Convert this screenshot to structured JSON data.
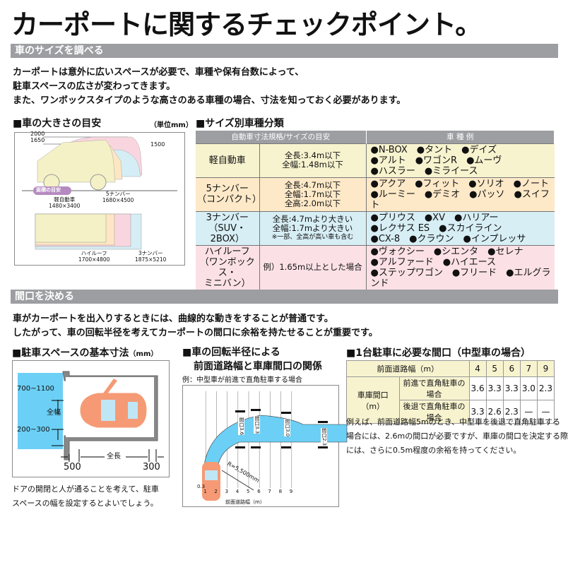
{
  "title": "カーポートに関するチェックポイント。",
  "section1": {
    "bar": "車のサイズを調べる",
    "lines": [
      "カーポートは意外に広いスペースが必要で、車種や保有台数によって、",
      "駐車スペースの広さが変わってきます。",
      "また、ワンボックスタイプのような高さのある車種の場合、寸法を知っておく必要があります。"
    ]
  },
  "car_size": {
    "heading": "■車の大きさの目安",
    "unit": "（単位mm）",
    "heights": [
      "2000",
      "1650",
      "1500"
    ],
    "area_badge": "面積の目安",
    "labels": {
      "kei_name": "軽自動車",
      "kei_dim": "1480×3400",
      "five_name": "5ナンバー",
      "five_dim": "1680×4500",
      "high_name": "ハイルーフ",
      "high_dim": "1700×4800",
      "three_name": "3ナンバー",
      "three_dim": "1875×5210"
    },
    "colors": {
      "kei": "#f4f1c6",
      "five": "#fde6c2",
      "high": "#f9d6df",
      "three": "#d5eef6"
    }
  },
  "size_table": {
    "heading": "■サイズ別車種分類",
    "headers": [
      "自動車寸法規格/サイズの目安",
      "車 種 例"
    ],
    "rows": [
      {
        "name": [
          "軽自動車"
        ],
        "spec": [
          "全長:3.4m以下",
          "全幅:1.48m以下"
        ],
        "examples": [
          "●N-BOX　●タント　●デイズ",
          "●アルト　●ワゴンR　●ムーヴ",
          "●ハスラー　●ミライース"
        ],
        "color": "#f7f3cf"
      },
      {
        "name": [
          "5ナンバー",
          "（コンパクト）"
        ],
        "spec": [
          "全長:4.7m以下",
          "全幅:1.7m以下",
          "全高:2.0m以下"
        ],
        "examples": [
          "●アクア　●フィット　●ソリオ　●ノート",
          "●ルーミー　●デミオ　●パッソ　●スイフト"
        ],
        "color": "#fde9c8"
      },
      {
        "name": [
          "3ナンバー",
          "（SUV・2BOX）"
        ],
        "spec": [
          "全長:4.7mより大きい",
          "全幅:1.7mより大きい",
          "※一部、全高が高い車も含む"
        ],
        "examples": [
          "●プリウス　●XV　●ハリアー",
          "●レクサス ES　●スカイライン",
          "●CX-8　●クラウン　●インプレッサ"
        ],
        "color": "#d7eef5"
      },
      {
        "name": [
          "ハイルーフ",
          "（ワンボックス・",
          "ミニバン）"
        ],
        "spec": [
          "例）1.65m以上とした場合"
        ],
        "examples": [
          "●ヴォクシー　●シエンタ　●セレナ",
          "●アルファード　●ハイエース",
          "●ステップワゴン　●フリード　●エルグランド"
        ],
        "color": "#fbe1e6"
      }
    ]
  },
  "section2": {
    "bar": "間口を決める",
    "lines": [
      "車がカーポートを出入りするときには、曲線的な動きをすることが普通です。",
      "したがって、車の回転半径を考えてカーポートの間口に余裕を持たせることが重要です。"
    ]
  },
  "parking": {
    "heading": "■駐車スペースの基本寸法",
    "unit": "（mm）",
    "dims": {
      "side1": "700~1100",
      "width": "全幅",
      "side2": "200~300",
      "front": "500",
      "length": "全長",
      "rear": "300"
    },
    "note": [
      "ドアの開閉と人が通ることを考えて、駐車",
      "スペースの幅を設定するとよいでしょう。"
    ],
    "colors": {
      "door_zone": "#6ccff5",
      "car": "#f59a74"
    }
  },
  "turning": {
    "heading": [
      "■車の回転半径による",
      "前面道路幅と車庫間口の関係"
    ],
    "sub": "例：中型車が前進で直角駐車する場合",
    "radius": "R=5,500mm",
    "offset": "0.3",
    "ticks": [
      "1",
      "2",
      "3",
      "4",
      "5",
      "6",
      "7",
      "8",
      "9"
    ],
    "axis_label": "前面道路幅（m）",
    "openings": [
      "間口3.6",
      "間口3.3",
      "間口3.0",
      "間口2.3"
    ]
  },
  "opening_table": {
    "heading": "■1台駐車に必要な間口（中型車の場合）",
    "road_label": "前面道路幅（m）",
    "road_widths": [
      "4",
      "5",
      "6",
      "7",
      "9"
    ],
    "row_group": "車庫間口（m）",
    "rows": [
      {
        "label": "前進で直角駐車の場合",
        "values": [
          "3.6",
          "3.3",
          "3.3",
          "3.0",
          "2.3"
        ]
      },
      {
        "label": "後退で直角駐車の場合",
        "values": [
          "3.3",
          "2.6",
          "2.3",
          "—",
          "—"
        ]
      }
    ],
    "note": [
      "例えば、前面道路幅5mのとき、中型車を後退で直角駐車する",
      "場合には、2.6mの間口が必要ですが、車庫の間口を決定する際",
      "には、さらに0.5m程度の余裕を持ってください。"
    ]
  }
}
